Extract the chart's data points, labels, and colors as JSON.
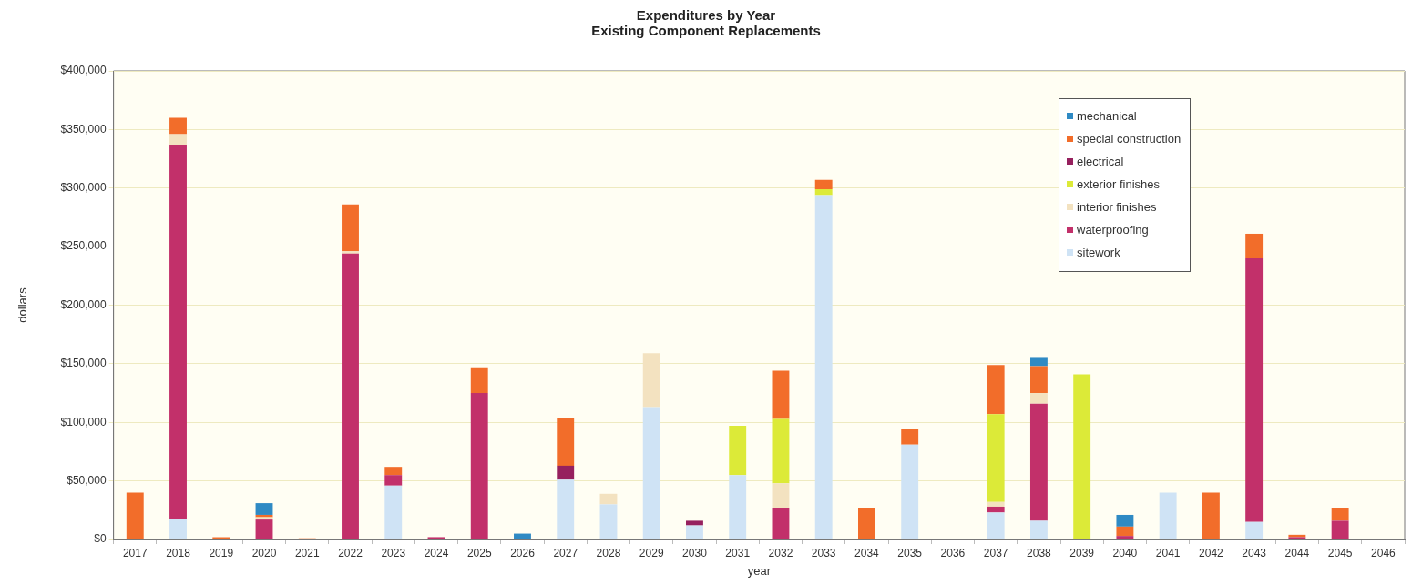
{
  "chart_data": {
    "type": "bar",
    "title": "Expenditures by Year",
    "subtitle": "Existing Component Replacements",
    "xlabel": "year",
    "ylabel": "dollars",
    "categories": [
      "2017",
      "2018",
      "2019",
      "2020",
      "2021",
      "2022",
      "2023",
      "2024",
      "2025",
      "2026",
      "2027",
      "2028",
      "2029",
      "2030",
      "2031",
      "2032",
      "2033",
      "2034",
      "2035",
      "2036",
      "2037",
      "2038",
      "2039",
      "2040",
      "2041",
      "2042",
      "2043",
      "2044",
      "2045",
      "2046"
    ],
    "stacked": true,
    "series": [
      {
        "name": "sitework",
        "color": "#cfe3f5",
        "values": [
          null,
          17000,
          null,
          null,
          null,
          null,
          46000,
          null,
          null,
          null,
          51000,
          30000,
          113000,
          12000,
          55000,
          null,
          294000,
          null,
          81000,
          null,
          23000,
          16000,
          null,
          null,
          40000,
          null,
          15000,
          null,
          null,
          null
        ]
      },
      {
        "name": "waterproofing",
        "color": "#c2306a",
        "values": [
          null,
          320000,
          null,
          17000,
          null,
          244000,
          9000,
          2000,
          125000,
          null,
          null,
          null,
          null,
          null,
          null,
          27000,
          null,
          null,
          null,
          null,
          5000,
          100000,
          null,
          3000,
          null,
          null,
          225000,
          2000,
          16000,
          null
        ]
      },
      {
        "name": "interior finishes",
        "color": "#f3e2c0",
        "values": [
          null,
          9000,
          null,
          2000,
          null,
          2000,
          null,
          null,
          null,
          null,
          null,
          9000,
          46000,
          null,
          null,
          21000,
          null,
          null,
          null,
          null,
          4000,
          9000,
          null,
          null,
          null,
          null,
          null,
          null,
          null,
          null
        ]
      },
      {
        "name": "exterior finishes",
        "color": "#dcea38",
        "values": [
          null,
          null,
          null,
          null,
          null,
          null,
          null,
          null,
          null,
          null,
          null,
          null,
          null,
          null,
          42000,
          55000,
          5000,
          null,
          null,
          null,
          75000,
          null,
          141000,
          null,
          null,
          null,
          null,
          null,
          null,
          null
        ]
      },
      {
        "name": "electrical",
        "color": "#96205e",
        "values": [
          null,
          null,
          null,
          null,
          null,
          null,
          null,
          null,
          null,
          null,
          12000,
          null,
          null,
          4000,
          null,
          null,
          null,
          null,
          null,
          null,
          null,
          null,
          null,
          null,
          null,
          null,
          null,
          null,
          null,
          null
        ]
      },
      {
        "name": "special construction",
        "color": "#f26d2a",
        "values": [
          40000,
          14000,
          2000,
          2000,
          1000,
          40000,
          7000,
          null,
          22000,
          null,
          41000,
          null,
          null,
          null,
          null,
          41000,
          8000,
          27000,
          13000,
          null,
          42000,
          23000,
          null,
          8000,
          null,
          40000,
          21000,
          2000,
          11000,
          null
        ]
      },
      {
        "name": "mechanical",
        "color": "#2f8ac4",
        "values": [
          null,
          null,
          null,
          10000,
          null,
          null,
          null,
          null,
          null,
          5000,
          null,
          null,
          null,
          null,
          null,
          null,
          null,
          null,
          null,
          null,
          null,
          7000,
          null,
          10000,
          null,
          null,
          null,
          null,
          null,
          null
        ]
      }
    ],
    "ylim": [
      0,
      400000
    ],
    "yticks": [
      {
        "value": 0,
        "label": "$0"
      },
      {
        "value": 50000,
        "label": "$50,000"
      },
      {
        "value": 100000,
        "label": "$100,000"
      },
      {
        "value": 150000,
        "label": "$150,000"
      },
      {
        "value": 200000,
        "label": "$200,000"
      },
      {
        "value": 250000,
        "label": "$250,000"
      },
      {
        "value": 300000,
        "label": "$300,000"
      },
      {
        "value": 350000,
        "label": "$350,000"
      },
      {
        "value": 400000,
        "label": "$400,000"
      }
    ],
    "grid": "y",
    "legend": "top right"
  }
}
